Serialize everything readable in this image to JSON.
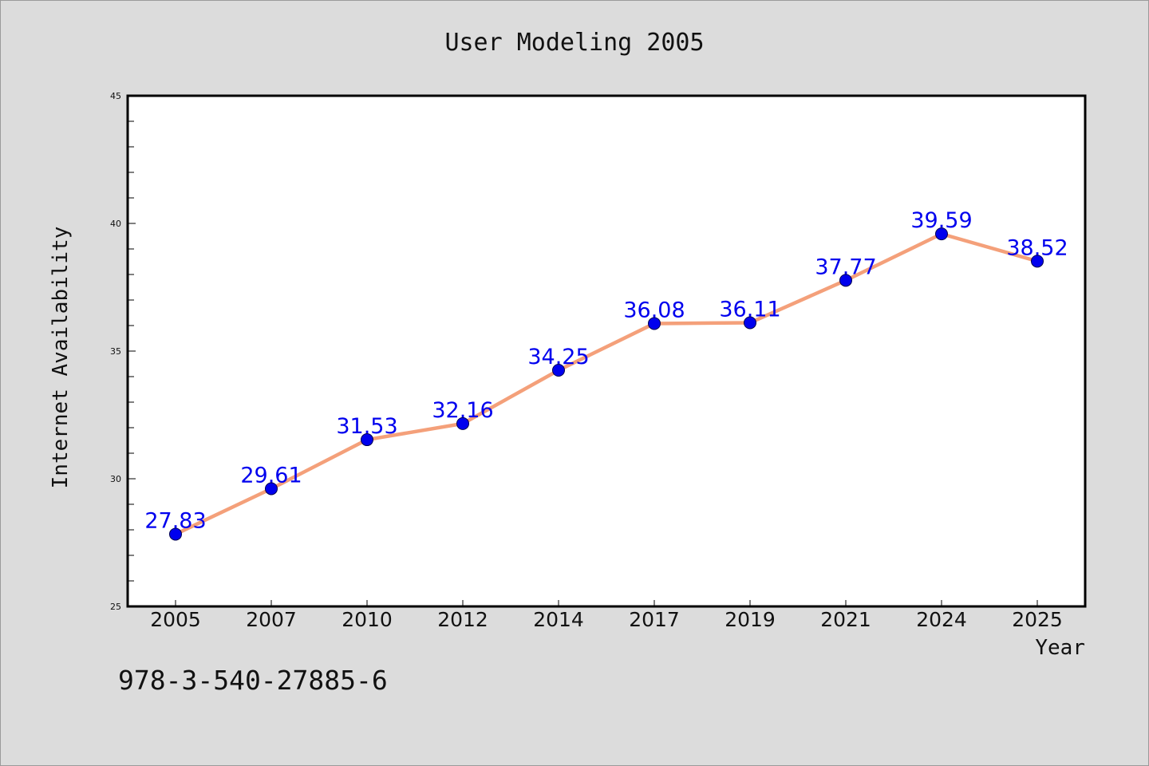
{
  "chart_data": {
    "type": "line",
    "title": "User Modeling 2005",
    "xlabel": "Year",
    "ylabel": "Internet Availability",
    "categories": [
      "2005",
      "2007",
      "2010",
      "2012",
      "2014",
      "2017",
      "2019",
      "2021",
      "2024",
      "2025"
    ],
    "series": [
      {
        "values": [
          27.83,
          29.61,
          31.53,
          32.16,
          34.25,
          36.08,
          36.11,
          37.77,
          39.59,
          38.52
        ],
        "line_color": "#f4a07a",
        "marker_color": "#0000ee"
      }
    ],
    "data_labels": [
      "27.83",
      "29.61",
      "31.53",
      "32.16",
      "34.25",
      "36.08",
      "36.11",
      "37.77",
      "39.59",
      "38.52"
    ],
    "ylim": [
      25,
      45
    ],
    "yticks": [
      "25",
      "30",
      "35",
      "40",
      "45"
    ],
    "grid": false,
    "legend": "none"
  },
  "annotation": "978-3-540-27885-6"
}
